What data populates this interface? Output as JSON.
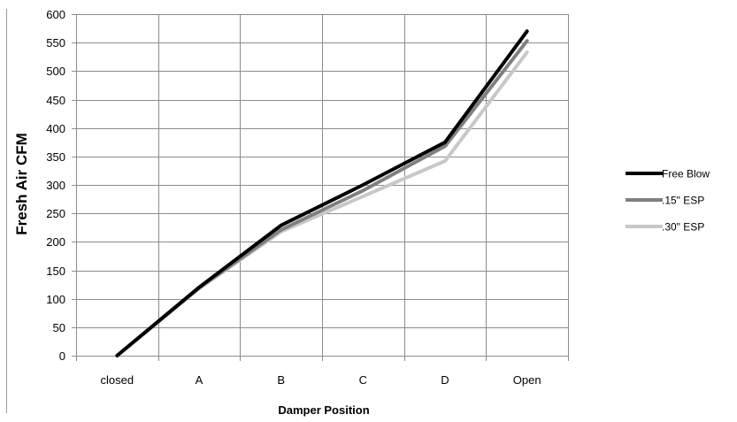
{
  "chart_data": {
    "type": "line",
    "xlabel": "Damper Position",
    "ylabel": "Fresh Air CFM",
    "categories": [
      "closed",
      "A",
      "B",
      "C",
      "D",
      "Open"
    ],
    "ylim": [
      0,
      600
    ],
    "ytick_step": 50,
    "grid": true,
    "legend_position": "right",
    "series": [
      {
        "name": ".30\" ESP",
        "color": "#c8c8c8",
        "values": [
          0,
          118,
          218,
          280,
          342,
          533
        ]
      },
      {
        "name": ".15\" ESP",
        "color": "#7f7f7f",
        "values": [
          0,
          119,
          221,
          290,
          368,
          553
        ]
      },
      {
        "name": "Free Blow",
        "color": "#000000",
        "values": [
          0,
          120,
          229,
          300,
          375,
          570
        ]
      }
    ],
    "legend_order": [
      "Free Blow",
      ".15\" ESP",
      ".30\" ESP"
    ]
  }
}
